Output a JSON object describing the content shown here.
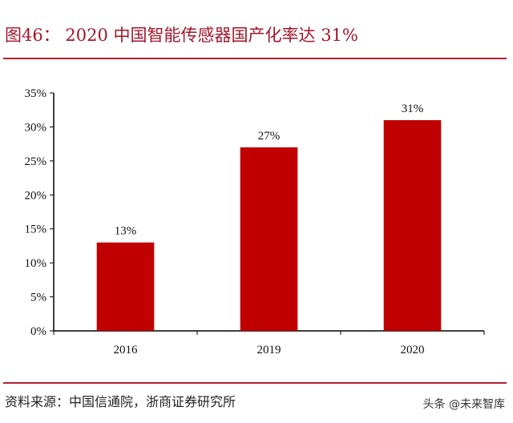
{
  "title": "图46： 2020 中国智能传感器国产化率达 31%",
  "source": "资料来源：中国信通院，浙商证券研究所",
  "watermark": "头条 @未来智库",
  "colors": {
    "bar": "#c00000",
    "title": "#a3152a",
    "rule": "#b3202f"
  },
  "chart_data": {
    "type": "bar",
    "title": "",
    "xlabel": "",
    "ylabel": "",
    "categories": [
      "2016",
      "2019",
      "2020"
    ],
    "values": [
      13,
      27,
      31
    ],
    "data_labels": [
      "13%",
      "27%",
      "31%"
    ],
    "ylim": [
      0,
      35
    ],
    "yticks": [
      0,
      5,
      10,
      15,
      20,
      25,
      30,
      35
    ],
    "ytick_labels": [
      "0%",
      "5%",
      "10%",
      "15%",
      "20%",
      "25%",
      "30%",
      "35%"
    ],
    "grid": false,
    "legend": "none"
  }
}
